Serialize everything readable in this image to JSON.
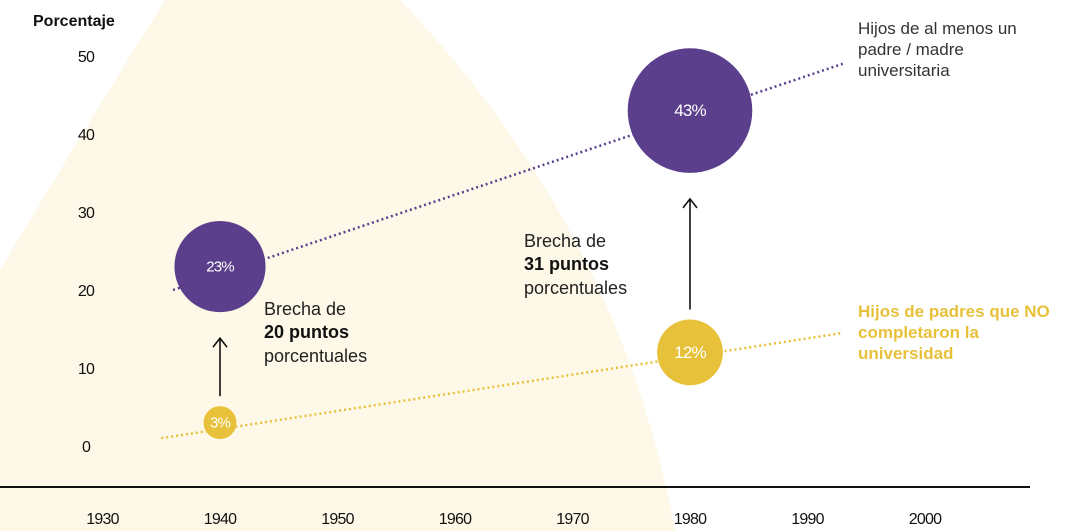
{
  "chart_data": {
    "type": "bubble",
    "y_label": "Porcentaje",
    "xlim": [
      1920,
      2010
    ],
    "xticks": [
      1930,
      1940,
      1950,
      1960,
      1970,
      1980,
      1990,
      2000
    ],
    "ylim": [
      0,
      50
    ],
    "yticks": [
      0,
      10,
      20,
      30,
      40,
      50
    ],
    "series": [
      {
        "name": "Hijos de al menos un padre / madre universitaria",
        "color": "#5b3f8c",
        "label_color": "#333333",
        "x": [
          1940,
          1980
        ],
        "values": [
          23,
          43
        ],
        "value_labels": [
          "23%",
          "43%"
        ],
        "trend_x": [
          1936,
          1993
        ],
        "trend_values": [
          20,
          49
        ]
      },
      {
        "name": "Hijos de padres que NO completaron la universidad",
        "color": "#e8c13a",
        "label_color": "#e8c13a",
        "x": [
          1940,
          1980
        ],
        "values": [
          3,
          12
        ],
        "value_labels": [
          "3%",
          "12%"
        ],
        "trend_x": [
          1935,
          1993
        ],
        "trend_values": [
          1,
          14.5
        ]
      }
    ],
    "annotations": [
      {
        "prefix": "Brecha de",
        "bold": "20 puntos",
        "suffix": "porcentuales"
      },
      {
        "prefix": "Brecha de",
        "bold": "31 puntos",
        "suffix": "porcentuales"
      }
    ]
  }
}
